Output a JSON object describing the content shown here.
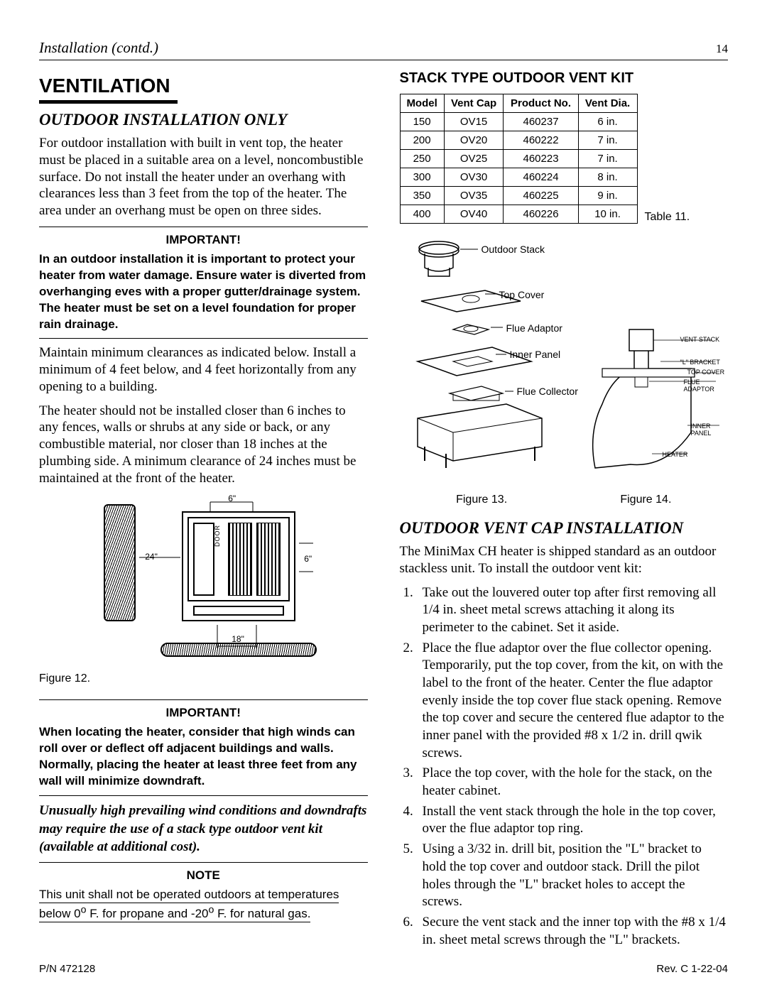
{
  "header": {
    "title": "Installation (contd.)",
    "page": "14"
  },
  "left": {
    "h1": "VENTILATION",
    "h2": "OUTDOOR INSTALLATION ONLY",
    "p1": "For outdoor installation with built in vent top, the heater must be placed in a suitable area on a level, noncombustible surface. Do not install the heater under an overhang with clearances less than 3 feet from the top of the heater. The area under an overhang must be open on three sides.",
    "imp1_title": "IMPORTANT!",
    "imp1_body": "In an outdoor installation it is important to protect your heater from water damage. Ensure water is diverted from overhanging eves with a proper gutter/drainage system. The heater must be set on a level foundation for proper rain drainage.",
    "p2": "Maintain minimum clearances as indicated below. Install a minimum of 4 feet below, and 4 feet horizontally from any opening to a building.",
    "p3": "The heater should not be installed closer than 6 inches to any fences, walls or shrubs at any side or back, or any combustible material, nor closer than 18 inches at the plumbing side. A minimum clearance of 24 inches must be maintained at the front of the heater.",
    "fig12": {
      "label": "Figure 12.",
      "dim_top": "6\"",
      "dim_right": "6\"",
      "dim_left": "24\"",
      "dim_bottom": "18\"",
      "door": "DOOR"
    },
    "imp2_title": "IMPORTANT!",
    "imp2_body": "When locating the heater, consider that high winds can roll over or deflect off adjacent buildings and walls.  Normally, placing the heater at least three feet from any wall will minimize downdraft.",
    "wind": "Unusually high prevailing wind conditions and downdrafts may require the use of a stack type outdoor vent kit (available at additional cost).",
    "note_title": "NOTE",
    "note_body_a": "This unit shall not be operated outdoors at temperatures below 0",
    "note_deg1": "o",
    "note_body_b": " F. for propane and -20",
    "note_deg2": "o",
    "note_body_c": " F. for natural gas."
  },
  "right": {
    "h2a": "STACK TYPE OUTDOOR VENT KIT",
    "table": {
      "caption": "Table 11.",
      "headers": [
        "Model",
        "Vent Cap",
        "Product No.",
        "Vent Dia."
      ],
      "rows": [
        [
          "150",
          "OV15",
          "460237",
          "6 in."
        ],
        [
          "200",
          "OV20",
          "460222",
          "7 in."
        ],
        [
          "250",
          "OV25",
          "460223",
          "7 in."
        ],
        [
          "300",
          "OV30",
          "460224",
          "8 in."
        ],
        [
          "350",
          "OV35",
          "460225",
          "9 in."
        ],
        [
          "400",
          "OV40",
          "460226",
          "10 in."
        ]
      ]
    },
    "exploded": {
      "labels": [
        "Outdoor Stack",
        "Top Cover",
        "Flue Adaptor",
        "Inner Panel",
        "Flue Collector"
      ],
      "small": [
        "VENT STACK",
        "\"L\" BRACKET",
        "TOP COVER",
        "FLUE ADAPTOR",
        "INNER PANEL",
        "HEATER"
      ],
      "fig13": "Figure 13.",
      "fig14": "Figure 14."
    },
    "h2b": "OUTDOOR VENT CAP INSTALLATION",
    "intro": "The MiniMax CH heater is shipped standard as an outdoor stackless unit. To install the outdoor vent kit:",
    "steps": [
      "Take out the louvered outer top after first removing all 1/4 in. sheet metal screws attaching it along its perimeter to the cabinet. Set it aside.",
      "Place the flue adaptor over the flue collector opening. Temporarily, put the top cover, from the kit, on with the label to the front of the heater. Center the flue adaptor evenly inside the top cover flue stack opening. Remove the top cover and secure the centered flue adaptor to the inner panel with the provided #8 x 1/2 in. drill qwik screws.",
      "Place the top cover, with the hole for the stack, on the heater cabinet.",
      "Install the vent stack through the hole in the top cover, over the flue adaptor top ring.",
      "Using a 3/32 in. drill bit, position the \"L\" bracket to hold the top cover and outdoor stack. Drill the pilot holes through the \"L\" bracket holes to accept the screws.",
      "Secure the vent stack and the inner top with the #8 x 1/4 in. sheet metal screws through the \"L\" brackets."
    ]
  },
  "footer": {
    "left": "P/N 472128",
    "right": "Rev. C  1-22-04"
  }
}
